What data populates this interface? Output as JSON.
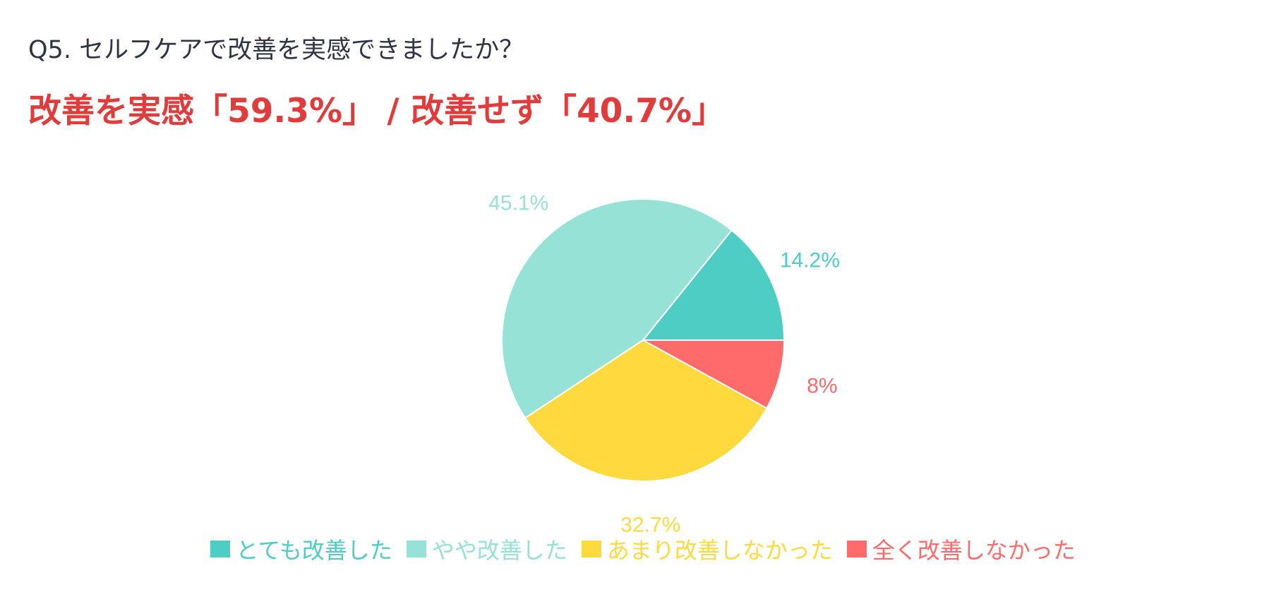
{
  "question": "Q5. セルフケアで改善を実感できましたか？",
  "headline": "改善を実感「59.3%」 / 改善せず「40.7%」",
  "chart_data": {
    "type": "pie",
    "title": "",
    "legend_position": "bottom",
    "slices": [
      {
        "name": "とても改善した",
        "value": 14.2,
        "label": "14.2%",
        "color": "#4ecdc4"
      },
      {
        "name": "やや改善した",
        "value": 45.1,
        "label": "45.1%",
        "color": "#97e2d6"
      },
      {
        "name": "あまり改善しなかった",
        "value": 32.7,
        "label": "32.7%",
        "color": "#ffda3e"
      },
      {
        "name": "全く改善しなかった",
        "value": 8,
        "label": "8%",
        "color": "#ff6b6b"
      }
    ]
  }
}
